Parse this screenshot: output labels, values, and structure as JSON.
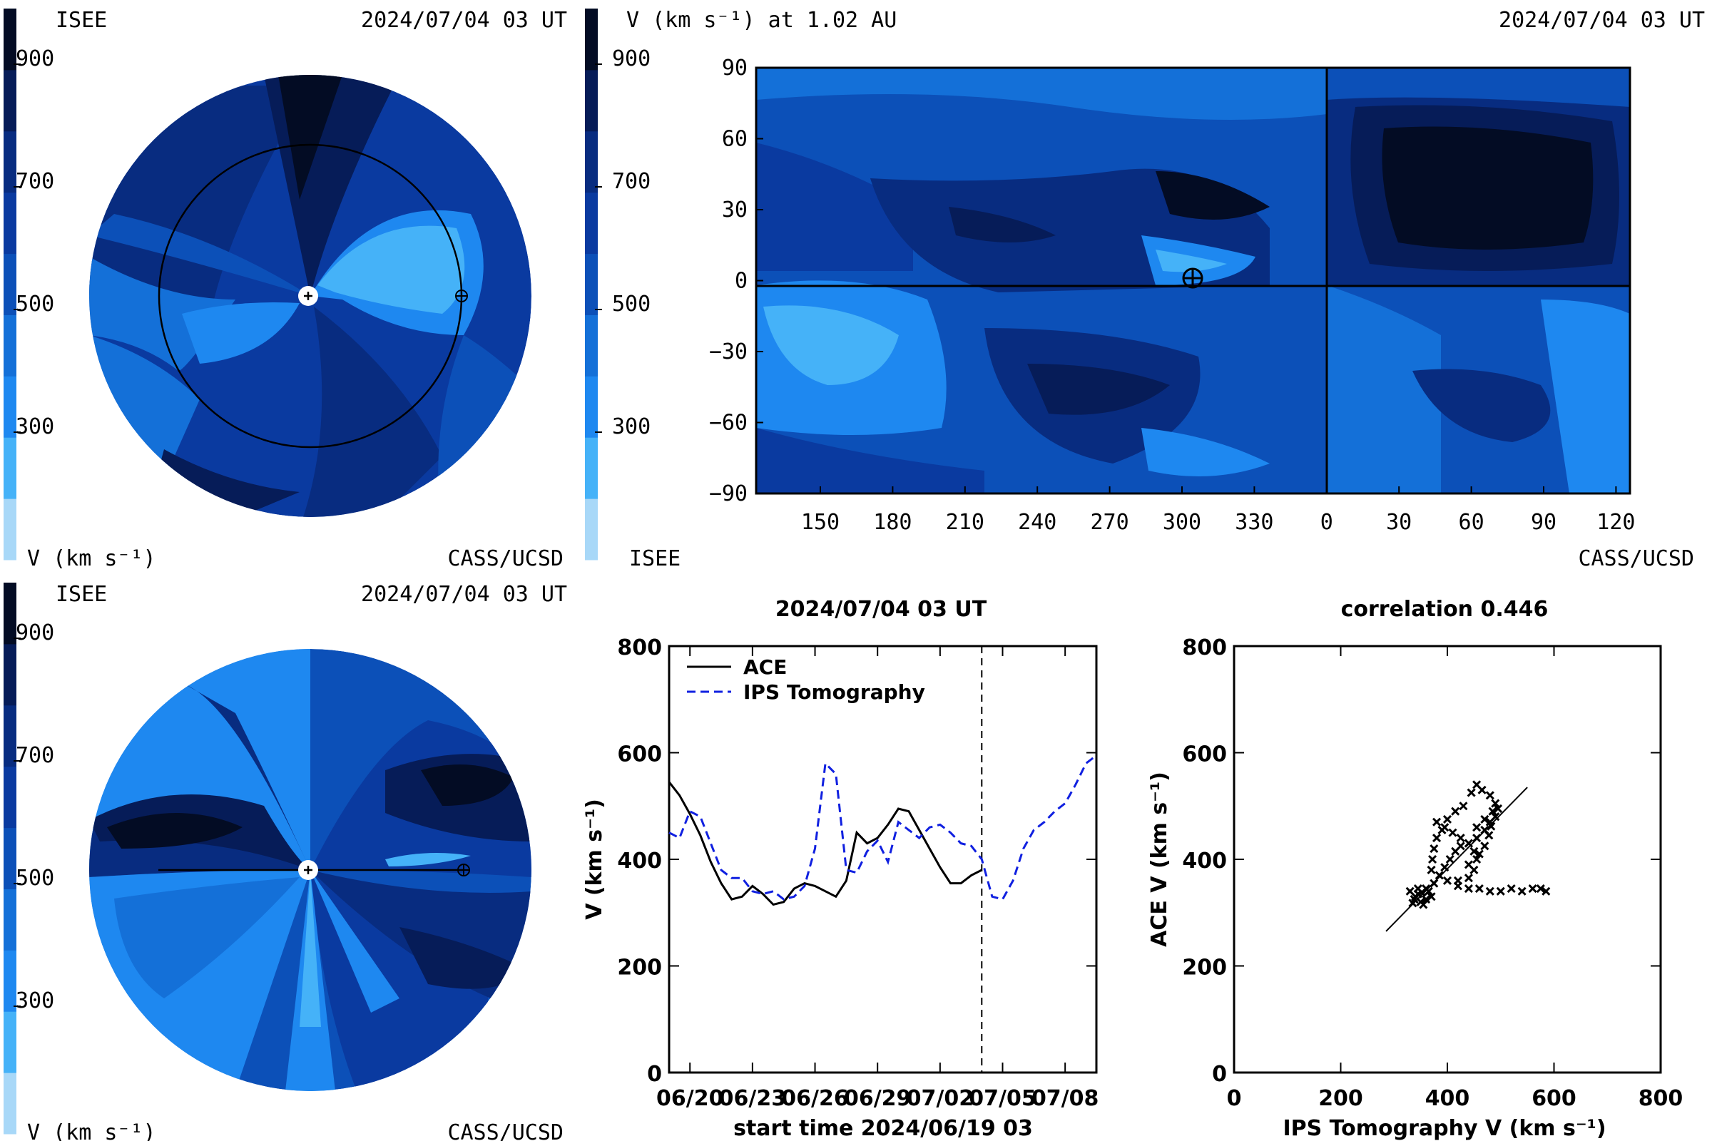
{
  "colors": {
    "levels": [
      "#a8d8f8",
      "#45b2f8",
      "#1e88f0",
      "#1470d8",
      "#0c50b8",
      "#0a3aa0",
      "#082c80",
      "#061c58",
      "#030c24"
    ],
    "ace": "#000000",
    "ips": "#1020e0",
    "earth_marker": "#000000"
  },
  "colorbar": {
    "ticks": [
      "900",
      "700",
      "500",
      "300"
    ],
    "unit_label": "V (km s⁻¹)"
  },
  "top_left": {
    "org": "ISEE",
    "timestamp": "2024/07/04 03 UT",
    "credit": "CASS/UCSD",
    "unit_label": "V (km s⁻¹)"
  },
  "bottom_left": {
    "org": "ISEE",
    "timestamp": "2024/07/04 03 UT",
    "credit": "CASS/UCSD",
    "unit_label": "V (km s⁻¹)"
  },
  "top_right": {
    "title": "V (km s⁻¹) at 1.02 AU",
    "timestamp": "2024/07/04 03 UT",
    "org": "ISEE",
    "credit": "CASS/UCSD",
    "colorbar_ticks": [
      "900",
      "700",
      "500",
      "300"
    ]
  },
  "chart_data": [
    {
      "type": "heatmap",
      "panel": "top-left polar view",
      "title": "",
      "note": "ecliptic-plane solar wind speed, Sun at centre, Earth orbit circle"
    },
    {
      "type": "heatmap",
      "panel": "top-right synoptic map",
      "title": "V (km s⁻¹) at 1.02 AU",
      "xticks": [
        "150",
        "180",
        "210",
        "240",
        "270",
        "300",
        "330",
        "0",
        "30",
        "60",
        "90",
        "120"
      ],
      "yticks": [
        "90",
        "60",
        "30",
        "0",
        "−30",
        "−60",
        "−90"
      ],
      "ylim": [
        -90,
        90
      ],
      "earth_position": [
        307,
        4
      ]
    },
    {
      "type": "heatmap",
      "panel": "bottom-left meridional view",
      "title": ""
    },
    {
      "type": "line",
      "title": "2024/07/04 03 UT",
      "xlabel": "start time 2024/06/19 03",
      "ylabel": "V (km s⁻¹)",
      "ylim": [
        0,
        800
      ],
      "yticks": [
        0,
        200,
        400,
        600,
        800
      ],
      "xlim": [
        0,
        20.5
      ],
      "xticks": [
        {
          "x": 1,
          "label": "06/20"
        },
        {
          "x": 4,
          "label": "06/23"
        },
        {
          "x": 7,
          "label": "06/26"
        },
        {
          "x": 10,
          "label": "06/29"
        },
        {
          "x": 13,
          "label": "07/02"
        },
        {
          "x": 16,
          "label": "07/05"
        },
        {
          "x": 19,
          "label": "07/08"
        }
      ],
      "now_marker_x": 15,
      "legend": "top-left",
      "series": [
        {
          "name": "ACE",
          "style": "solid",
          "x": [
            0,
            0.5,
            1,
            1.5,
            2,
            2.5,
            3,
            3.5,
            4,
            4.5,
            5,
            5.5,
            6,
            6.5,
            7,
            7.5,
            8,
            8.5,
            9,
            9.5,
            10,
            10.5,
            11,
            11.5,
            12,
            12.5,
            13,
            13.5,
            14,
            14.5,
            15
          ],
          "y": [
            545,
            520,
            485,
            445,
            395,
            355,
            325,
            330,
            350,
            335,
            315,
            320,
            345,
            355,
            350,
            340,
            330,
            360,
            450,
            430,
            440,
            465,
            495,
            490,
            455,
            420,
            385,
            355,
            355,
            370,
            380
          ]
        },
        {
          "name": "IPS Tomography",
          "style": "dashed",
          "x": [
            0,
            0.5,
            1,
            1.5,
            2,
            2.5,
            3,
            3.5,
            4,
            4.5,
            5,
            5.5,
            6,
            6.5,
            7,
            7.5,
            8,
            8.5,
            9,
            9.5,
            10,
            10.5,
            11,
            11.5,
            12,
            12.5,
            13,
            13.5,
            14,
            14.5,
            15,
            15.5,
            16,
            16.5,
            17,
            17.5,
            18,
            18.5,
            19,
            19.5,
            20,
            20.5
          ],
          "y": [
            450,
            440,
            490,
            480,
            430,
            380,
            365,
            365,
            340,
            335,
            340,
            325,
            330,
            350,
            420,
            580,
            560,
            380,
            375,
            415,
            435,
            395,
            470,
            455,
            440,
            460,
            465,
            450,
            430,
            425,
            400,
            330,
            325,
            360,
            420,
            455,
            470,
            490,
            505,
            540,
            580,
            595
          ]
        }
      ]
    },
    {
      "type": "scatter",
      "title": "correlation 0.446",
      "xlabel": "IPS Tomography V (km s⁻¹)",
      "ylabel": "ACE V (km s⁻¹)",
      "xlim": [
        0,
        800
      ],
      "ylim": [
        0,
        800
      ],
      "xticks": [
        0,
        200,
        400,
        600,
        800
      ],
      "yticks": [
        0,
        200,
        400,
        600,
        800
      ],
      "fit_line": [
        [
          285,
          265
        ],
        [
          550,
          535
        ]
      ],
      "points": [
        [
          340,
          330
        ],
        [
          350,
          320
        ],
        [
          360,
          325
        ],
        [
          330,
          340
        ],
        [
          345,
          345
        ],
        [
          370,
          330
        ],
        [
          355,
          315
        ],
        [
          365,
          340
        ],
        [
          375,
          355
        ],
        [
          385,
          370
        ],
        [
          395,
          385
        ],
        [
          405,
          400
        ],
        [
          415,
          415
        ],
        [
          425,
          425
        ],
        [
          440,
          430
        ],
        [
          455,
          440
        ],
        [
          470,
          455
        ],
        [
          480,
          470
        ],
        [
          485,
          490
        ],
        [
          490,
          505
        ],
        [
          480,
          520
        ],
        [
          465,
          530
        ],
        [
          455,
          540
        ],
        [
          445,
          525
        ],
        [
          430,
          500
        ],
        [
          415,
          490
        ],
        [
          400,
          475
        ],
        [
          390,
          455
        ],
        [
          380,
          440
        ],
        [
          375,
          420
        ],
        [
          372,
          400
        ],
        [
          370,
          380
        ],
        [
          400,
          360
        ],
        [
          420,
          360
        ],
        [
          440,
          365
        ],
        [
          450,
          380
        ],
        [
          455,
          400
        ],
        [
          450,
          415
        ],
        [
          440,
          430
        ],
        [
          425,
          440
        ],
        [
          410,
          450
        ],
        [
          395,
          460
        ],
        [
          380,
          470
        ],
        [
          420,
          350
        ],
        [
          440,
          345
        ],
        [
          460,
          345
        ],
        [
          480,
          340
        ],
        [
          500,
          340
        ],
        [
          520,
          345
        ],
        [
          540,
          340
        ],
        [
          560,
          345
        ],
        [
          575,
          345
        ],
        [
          585,
          340
        ],
        [
          440,
          390
        ],
        [
          460,
          410
        ],
        [
          470,
          425
        ],
        [
          478,
          445
        ],
        [
          482,
          462
        ],
        [
          490,
          480
        ],
        [
          495,
          495
        ],
        [
          470,
          475
        ],
        [
          455,
          460
        ],
        [
          345,
          335
        ],
        [
          352,
          338
        ],
        [
          338,
          325
        ],
        [
          360,
          345
        ],
        [
          335,
          318
        ]
      ]
    }
  ]
}
